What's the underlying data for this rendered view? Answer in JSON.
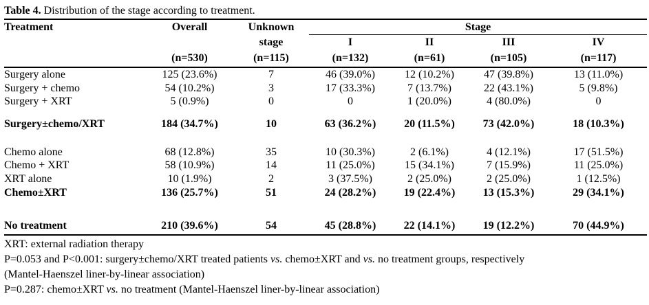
{
  "title": {
    "bold": "Table 4.",
    "rest": " Distribution of the stage according to treatment."
  },
  "table": {
    "header": {
      "treatment": "Treatment",
      "overall": "Overall",
      "overall_n": "(n=530)",
      "unknown_line1": "Unknown",
      "unknown_line2": "stage",
      "unknown_n": "(n=115)",
      "stage": "Stage",
      "stage_cols": [
        {
          "label": "I",
          "n": "(n=132)"
        },
        {
          "label": "II",
          "n": "(n=61)"
        },
        {
          "label": "III",
          "n": "(n=105)"
        },
        {
          "label": "IV",
          "n": "(n=117)"
        }
      ]
    },
    "rows": [
      {
        "cells": [
          "Surgery alone",
          "125 (23.6%)",
          "7",
          "46 (39.0%)",
          "12 (10.2%)",
          "47 (39.8%)",
          "13 (11.0%)"
        ]
      },
      {
        "cells": [
          "Surgery + chemo",
          "54 (10.2%)",
          "3",
          "17 (33.3%)",
          "7 (13.7%)",
          "22 (43.1%)",
          "5 (9.8%)"
        ]
      },
      {
        "cells": [
          "Surgery + XRT",
          "5 (0.9%)",
          "0",
          "0",
          "1 (20.0%)",
          "4 (80.0%)",
          "0"
        ]
      },
      {
        "cells": [
          "Surgery±chemo/XRT",
          "184 (34.7%)",
          "10",
          "63 (36.2%)",
          "20 (11.5%)",
          "73 (42.0%)",
          "18 (10.3%)"
        ]
      },
      {
        "cells": [
          "Chemo alone",
          "68 (12.8%)",
          "35",
          "10 (30.3%)",
          "2 (6.1%)",
          "4 (12.1%)",
          "17 (51.5%)"
        ]
      },
      {
        "cells": [
          "Chemo + XRT",
          "58 (10.9%)",
          "14",
          "11 (25.0%)",
          "15 (34.1%)",
          "7 (15.9%)",
          "11 (25.0%)"
        ]
      },
      {
        "cells": [
          "XRT alone",
          "10 (1.9%)",
          "2",
          "3 (37.5%)",
          "2 (25.0%)",
          "2 (25.0%)",
          "1 (12.5%)"
        ]
      },
      {
        "cells": [
          "Chemo±XRT",
          "136 (25.7%)",
          "51",
          "24 (28.2%)",
          "19 (22.4%)",
          "13 (15.3%)",
          "29 (34.1%)"
        ]
      },
      {
        "cells": [
          "No treatment",
          "210 (39.6%)",
          "54",
          "45 (28.8%)",
          "22 (14.1%)",
          "19 (12.2%)",
          "70 (44.9%)"
        ]
      }
    ]
  },
  "footnotes": {
    "xrt": "XRT: external radiation therapy",
    "p1": {
      "part1": "P=0.053 and P<0.001: surgery±chemo/XRT treated patients ",
      "vs1": "vs.",
      "part2": " chemo±XRT and ",
      "vs2": "vs.",
      "part3": " no treatment groups, respectively"
    },
    "p1b": "(Mantel-Haenszel liner-by-linear association)",
    "p2": {
      "part1": "P=0.287: chemo±XRT ",
      "vs": "vs.",
      "part2": " no treatment (Mantel-Haenszel liner-by-linear association)"
    }
  }
}
